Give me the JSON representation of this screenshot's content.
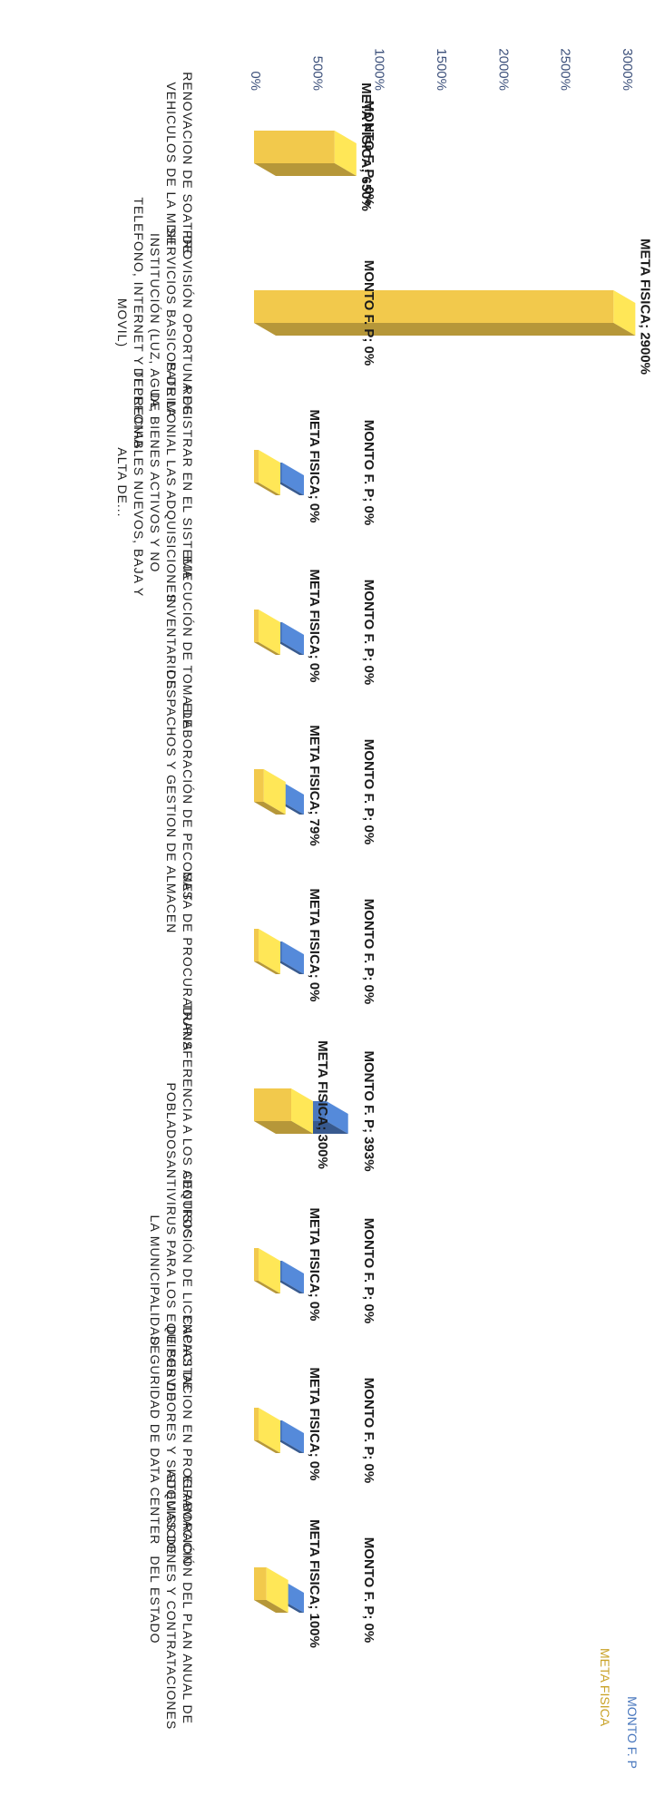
{
  "chart_data": {
    "type": "bar",
    "title": "",
    "xlabel": "",
    "ylabel": "",
    "ylim": [
      0,
      3000
    ],
    "y_ticks": [
      "0%",
      "500%",
      "1000%",
      "1500%",
      "2000%",
      "2500%",
      "3000%"
    ],
    "grid": false,
    "legend_position": "top-right",
    "legend": [
      "MONTO F. P",
      "META FISICA"
    ],
    "categories": [
      "RENOVACION DE SOAT DE VEHICULOS DE LA MDH",
      "PROVISIÓN OPORTUNA DE SERVICIOS BASICOS DE LA INSTITUCIÓN (LUZ, AGUA, TELEFONO, INTERNET Y TELEFONIA MOVIL)",
      "REGISTRAR EN EL SISTEMA PATRIMONIAL LAS ADQUISICIONES DE BIENES ACTIVOS Y NO DEPRECIABLES NUEVOS, BAJA Y ALTA DE...",
      "EJECUCIÓN DE TOMA DE INVENTARIOS",
      "ELABORACIÓN DE PECOSAS DESPACHOS Y GESTION DE ALMACEN",
      "META DE PROCURADURIA",
      "TRANSFERENCIA A LOS CENTROS POBLADOS",
      "ADQUISICIÓN DE LICENCIAS DE ANTIVIRUS PARA LOS EQUIPOS DE LA MUNICIPALIDAD",
      "CAPACITACION EN PROGRAMACIÓN DE SERVIDORES Y SISTEMAS DE SEGURIDAD DE DATA CENTER",
      "ELABORACIÓN DEL PLAN ANUAL DE ADQUISICIONES Y CONTRATACIONES DEL ESTADO"
    ],
    "series": [
      {
        "name": "MONTO F. P",
        "color": "#4a78be",
        "values": [
          0,
          0,
          0,
          0,
          0,
          0,
          393,
          0,
          0,
          0
        ],
        "labels": [
          "MONTO F. P; 0%",
          "MONTO F. P; 0%",
          "MONTO F. P; 0%",
          "MONTO F. P; 0%",
          "MONTO F. P; 0%",
          "MONTO F. P; 0%",
          "MONTO F. P; 393%",
          "MONTO F. P; 0%",
          "MONTO F. P; 0%",
          "MONTO F. P; 0%"
        ]
      },
      {
        "name": "META FISICA",
        "color": "#f2c94c",
        "values": [
          650,
          2900,
          0,
          0,
          79,
          0,
          300,
          0,
          0,
          100
        ],
        "labels": [
          "META FISICA; 650%",
          "META FISICA; 2900%",
          "META FISICA; 0%",
          "META FISICA; 0%",
          "META FISICA; 79%",
          "META FISICA; 0%",
          "META FISICA; 300%",
          "META FISICA; 0%",
          "META FISICA; 0%",
          "META FISICA; 100%"
        ]
      }
    ]
  }
}
